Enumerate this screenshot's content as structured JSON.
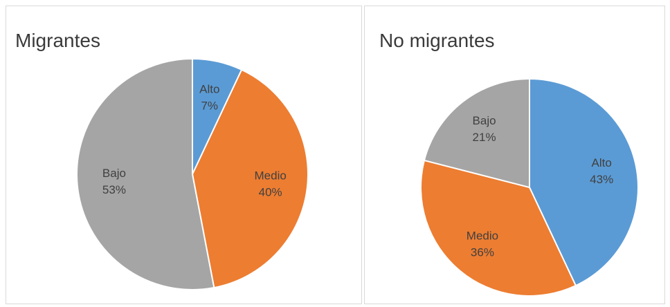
{
  "chart_data": [
    {
      "type": "pie",
      "title": "Migrantes",
      "categories": [
        "Alto",
        "Medio",
        "Bajo"
      ],
      "values": [
        7,
        40,
        53
      ],
      "value_labels": [
        "7%",
        "40%",
        "53%"
      ],
      "colors": [
        "#5b9bd5",
        "#ed7d31",
        "#a5a5a5"
      ]
    },
    {
      "type": "pie",
      "title": "No migrantes",
      "categories": [
        "Alto",
        "Medio",
        "Bajo"
      ],
      "values": [
        43,
        36,
        21
      ],
      "value_labels": [
        "43%",
        "36%",
        "21%"
      ],
      "colors": [
        "#5b9bd5",
        "#ed7d31",
        "#a5a5a5"
      ]
    }
  ]
}
